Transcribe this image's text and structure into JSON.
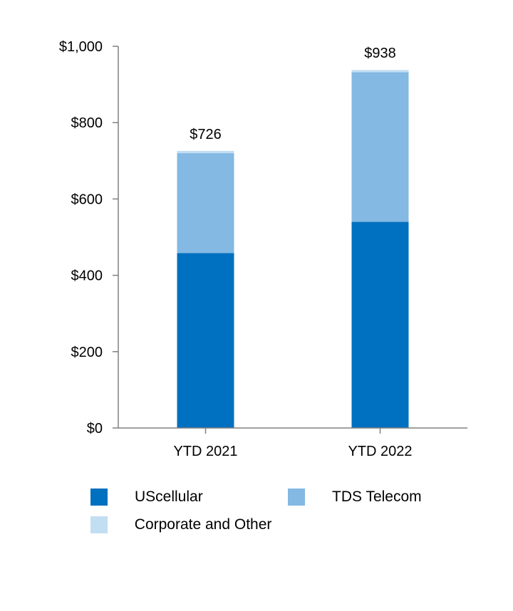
{
  "chart_data": {
    "type": "bar",
    "stacked": true,
    "categories": [
      "YTD 2021",
      "YTD 2022"
    ],
    "series": [
      {
        "name": "UScellular",
        "values": [
          458,
          540
        ],
        "color": "#0070C0"
      },
      {
        "name": "TDS Telecom",
        "values": [
          262,
          392
        ],
        "color": "#83B9E2"
      },
      {
        "name": "Corporate and Other",
        "values": [
          6,
          6
        ],
        "color": "#C2DEF2"
      }
    ],
    "totals": [
      "$726",
      "$938"
    ],
    "ytick_labels": [
      "$0",
      "$200",
      "$400",
      "$600",
      "$800",
      "$1,000"
    ],
    "yticks": [
      0,
      200,
      400,
      600,
      800,
      1000
    ],
    "ylim": [
      0,
      1000
    ],
    "title": "",
    "xlabel": "",
    "ylabel": "",
    "legend_position": "bottom"
  }
}
